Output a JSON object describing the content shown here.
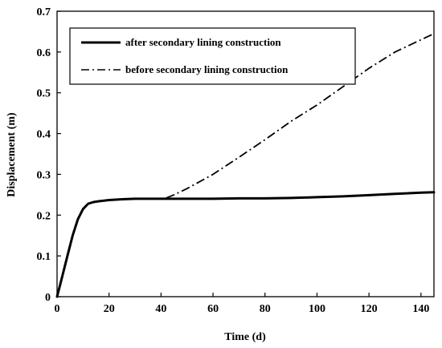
{
  "chart_data": {
    "type": "line",
    "title": "",
    "xlabel": "Time (d)",
    "ylabel": "Displacement (m)",
    "xlim": [
      0,
      145
    ],
    "ylim": [
      0,
      0.7
    ],
    "xticks": [
      0,
      20,
      40,
      60,
      80,
      100,
      120,
      140
    ],
    "yticks": [
      0,
      0.1,
      0.2,
      0.3,
      0.4,
      0.5,
      0.6,
      0.7
    ],
    "xtick_labels": [
      "0",
      "20",
      "40",
      "60",
      "80",
      "100",
      "120",
      "140"
    ],
    "ytick_labels": [
      "0",
      "0.1",
      "0.2",
      "0.3",
      "0.4",
      "0.5",
      "0.6",
      "0.7"
    ],
    "grid": false,
    "legend_position": "top-left",
    "series": [
      {
        "name": "after secondary lining construction",
        "style": "solid",
        "color": "#000000",
        "x": [
          0,
          2,
          4,
          6,
          8,
          10,
          12,
          14,
          16,
          20,
          25,
          30,
          35,
          40,
          50,
          60,
          70,
          80,
          90,
          100,
          110,
          120,
          130,
          140,
          145
        ],
        "y": [
          0,
          0.05,
          0.1,
          0.15,
          0.19,
          0.215,
          0.228,
          0.232,
          0.234,
          0.237,
          0.239,
          0.24,
          0.24,
          0.24,
          0.24,
          0.24,
          0.241,
          0.241,
          0.242,
          0.244,
          0.246,
          0.249,
          0.252,
          0.255,
          0.256
        ]
      },
      {
        "name": "before secondary lining construction",
        "style": "dashdot",
        "color": "#000000",
        "x": [
          42,
          45,
          50,
          60,
          70,
          80,
          90,
          100,
          110,
          120,
          130,
          140,
          145
        ],
        "y": [
          0.242,
          0.25,
          0.265,
          0.3,
          0.342,
          0.385,
          0.43,
          0.47,
          0.515,
          0.56,
          0.6,
          0.63,
          0.645
        ]
      }
    ]
  }
}
